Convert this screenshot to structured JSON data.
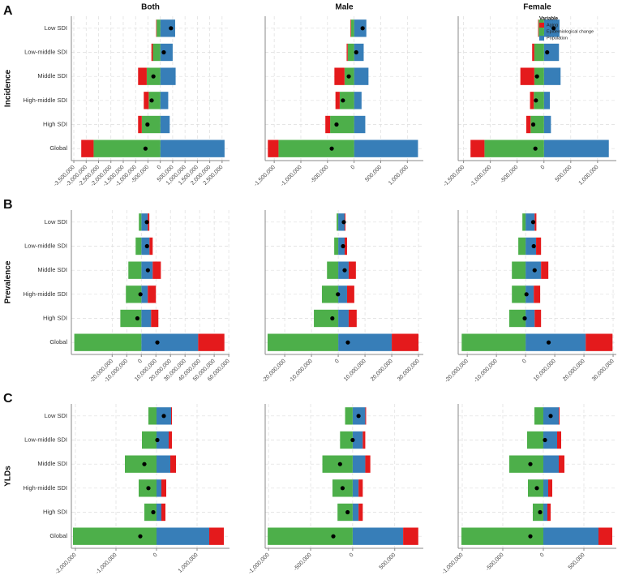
{
  "figure": {
    "columns": [
      "Both",
      "Male",
      "Female"
    ],
    "rows": [
      {
        "letter": "A",
        "measure": "Incidence"
      },
      {
        "letter": "B",
        "measure": "Prevalence"
      },
      {
        "letter": "C",
        "measure": "YLDs"
      }
    ],
    "legend_title": "Variable"
  },
  "chart_data": [
    {
      "type": "bar",
      "categories": [
        "Low SDI",
        "Low-middle SDI",
        "Middle SDI",
        "High-middle SDI",
        "High SDI",
        "Global"
      ],
      "series": [
        {
          "color": "#e41a1c",
          "values": [
            -20000,
            -60000,
            -350000,
            -200000,
            -150000,
            -500000
          ]
        },
        {
          "color": "#4daf4a",
          "values": [
            -150000,
            -300000,
            -550000,
            -470000,
            -750000,
            -2700000
          ]
        },
        {
          "color": "#377eb8",
          "values": [
            600000,
            500000,
            620000,
            320000,
            380000,
            2600000
          ]
        }
      ],
      "xlim": [
        -3600000,
        2800000
      ],
      "grid": true,
      "xticks": [
        {
          "value": -3500000,
          "label": "-3,500,000"
        },
        {
          "value": -3000000,
          "label": "-3,000,000"
        },
        {
          "value": -2500000,
          "label": "-2,500,000"
        },
        {
          "value": -2000000,
          "label": "-2,000,000"
        },
        {
          "value": -1500000,
          "label": "-1,500,000"
        },
        {
          "value": -1000000,
          "label": "-1,000,000"
        },
        {
          "value": -500000,
          "label": "-500,000"
        },
        0,
        {
          "value": 500000,
          "label": "500,000"
        },
        {
          "value": 1000000,
          "label": "1,000,000"
        },
        {
          "value": 1500000,
          "label": "1,500,000"
        },
        {
          "value": 2000000,
          "label": "2,000,000"
        },
        {
          "value": 2500000,
          "label": "2,500,000"
        }
      ]
    },
    {
      "type": "bar",
      "series": [
        {
          "color": "#e41a1c",
          "values": [
            -10000,
            -20000,
            -190000,
            -80000,
            -90000,
            -200000
          ]
        },
        {
          "color": "#4daf4a",
          "values": [
            -60000,
            -120000,
            -180000,
            -270000,
            -450000,
            -1420000
          ]
        },
        {
          "color": "#377eb8",
          "values": [
            230000,
            180000,
            270000,
            140000,
            210000,
            1200000
          ]
        }
      ],
      "xlim": [
        -1670000,
        1300000
      ],
      "grid": true,
      "xticks": [
        {
          "value": -1500000,
          "label": "-1,500,000"
        },
        {
          "value": -1000000,
          "label": "-1,000,000"
        },
        {
          "value": -500000,
          "label": "-500,000"
        },
        0,
        {
          "value": 500000,
          "label": "500,000"
        },
        {
          "value": 1000000,
          "label": "1,000,000"
        }
      ]
    },
    {
      "type": "bar",
      "series": [
        {
          "name": "Aging",
          "color": "#e41a1c",
          "values": [
            -10000,
            -40000,
            -260000,
            -70000,
            -80000,
            -260000
          ]
        },
        {
          "name": "Epidemiological change",
          "color": "#4daf4a",
          "values": [
            -100000,
            -180000,
            -180000,
            -190000,
            -250000,
            -1110000
          ]
        },
        {
          "name": "Population",
          "color": "#377eb8",
          "values": [
            290000,
            280000,
            310000,
            110000,
            130000,
            1210000
          ]
        }
      ],
      "xlim": [
        -1600000,
        1350000
      ],
      "grid": true,
      "xticks": [
        {
          "value": -1500000,
          "label": "-1,500,000"
        },
        {
          "value": -1000000,
          "label": "-1,000,000"
        },
        {
          "value": -500000,
          "label": "-500,000"
        },
        0,
        {
          "value": 500000,
          "label": "500,000"
        },
        {
          "value": 1000000,
          "label": "1,000,000"
        }
      ]
    },
    {
      "type": "bar",
      "categories": [
        "Low SDI",
        "Low-middle SDI",
        "Middle SDI",
        "High-middle SDI",
        "High SDI",
        "Global"
      ],
      "series": [
        {
          "color": "#e41a1c",
          "values": [
            1100000,
            2200000,
            5600000,
            5600000,
            5000000,
            18000000
          ]
        },
        {
          "color": "#4daf4a",
          "values": [
            -1700000,
            -3900000,
            -8900000,
            -10600000,
            -14400000,
            -46000000
          ]
        },
        {
          "color": "#377eb8",
          "values": [
            4400000,
            5600000,
            7800000,
            4400000,
            6700000,
            39000000
          ]
        }
      ],
      "xlim": [
        -48000000,
        60500000
      ],
      "grid": true,
      "xticks": [
        {
          "value": -20000000,
          "label": "-20,000,000"
        },
        {
          "value": -10000000,
          "label": "-10,000,000"
        },
        0,
        {
          "value": 10000000,
          "label": "10,000,000"
        },
        {
          "value": 20000000,
          "label": "20,000,000"
        },
        {
          "value": 30000000,
          "label": "30,000,000"
        },
        {
          "value": 40000000,
          "label": "40,000,000"
        },
        {
          "value": 50000000,
          "label": "50,000,000"
        },
        {
          "value": 60000000,
          "label": "60,000,000"
        }
      ]
    },
    {
      "type": "bar",
      "series": [
        {
          "color": "#e41a1c",
          "values": [
            300000,
            900000,
            2700000,
            2700000,
            3000000,
            10000000
          ]
        },
        {
          "color": "#4daf4a",
          "values": [
            -600000,
            -1500000,
            -4200000,
            -6100000,
            -9100000,
            -26400000
          ]
        },
        {
          "color": "#377eb8",
          "values": [
            2400000,
            2400000,
            3900000,
            3300000,
            3900000,
            20000000
          ]
        }
      ],
      "xlim": [
        -27300000,
        31800000
      ],
      "grid": true,
      "xticks": [
        {
          "value": -20000000,
          "label": "-20,000,000"
        },
        {
          "value": -10000000,
          "label": "-10,000,000"
        },
        0,
        {
          "value": 10000000,
          "label": "10,000,000"
        },
        {
          "value": 20000000,
          "label": "20,000,000"
        },
        {
          "value": 30000000,
          "label": "30,000,000"
        }
      ]
    },
    {
      "type": "bar",
      "series": [
        {
          "color": "#e41a1c",
          "values": [
            600000,
            1700000,
            2500000,
            2200000,
            2200000,
            9200000
          ]
        },
        {
          "color": "#4daf4a",
          "values": [
            -1100000,
            -2500000,
            -4700000,
            -4700000,
            -5600000,
            -21900000
          ]
        },
        {
          "color": "#377eb8",
          "values": [
            3100000,
            3600000,
            5300000,
            2800000,
            3100000,
            20600000
          ]
        }
      ],
      "xlim": [
        -23100000,
        31100000
      ],
      "grid": true,
      "xticks": [
        {
          "value": -20000000,
          "label": "-20,000,000"
        },
        {
          "value": -10000000,
          "label": "-10,000,000"
        },
        0,
        {
          "value": 10000000,
          "label": "10,000,000"
        },
        {
          "value": 20000000,
          "label": "20,000,000"
        },
        {
          "value": 30000000,
          "label": "30,000,000"
        }
      ]
    },
    {
      "type": "bar",
      "categories": [
        "Low SDI",
        "Low-middle SDI",
        "Middle SDI",
        "High-middle SDI",
        "High SDI",
        "Global"
      ],
      "series": [
        {
          "color": "#e41a1c",
          "values": [
            20000,
            80000,
            140000,
            120000,
            100000,
            360000
          ]
        },
        {
          "color": "#4daf4a",
          "values": [
            -200000,
            -360000,
            -780000,
            -440000,
            -300000,
            -2060000
          ]
        },
        {
          "color": "#377eb8",
          "values": [
            360000,
            300000,
            340000,
            120000,
            120000,
            1300000
          ]
        }
      ],
      "xlim": [
        -2100000,
        1800000
      ],
      "grid": true,
      "xticks": [
        {
          "value": -2000000,
          "label": "-2,000,000"
        },
        {
          "value": -1000000,
          "label": "-1,000,000"
        },
        0,
        {
          "value": 1000000,
          "label": "1,000,000"
        }
      ]
    },
    {
      "type": "bar",
      "series": [
        {
          "color": "#e41a1c",
          "values": [
            10000,
            30000,
            60000,
            50000,
            50000,
            180000
          ]
        },
        {
          "color": "#4daf4a",
          "values": [
            -90000,
            -150000,
            -360000,
            -240000,
            -180000,
            -1010000
          ]
        },
        {
          "color": "#377eb8",
          "values": [
            150000,
            120000,
            150000,
            70000,
            70000,
            600000
          ]
        }
      ],
      "xlim": [
        -1040000,
        840000
      ],
      "grid": true,
      "xticks": [
        {
          "value": -1000000,
          "label": "-1,000,000"
        },
        {
          "value": -500000,
          "label": "-500,000"
        },
        0,
        {
          "value": 500000,
          "label": "500,000"
        }
      ]
    },
    {
      "type": "bar",
      "series": [
        {
          "color": "#e41a1c",
          "values": [
            10000,
            50000,
            70000,
            50000,
            40000,
            170000
          ]
        },
        {
          "color": "#4daf4a",
          "values": [
            -110000,
            -200000,
            -420000,
            -190000,
            -130000,
            -1010000
          ]
        },
        {
          "color": "#377eb8",
          "values": [
            190000,
            170000,
            190000,
            60000,
            50000,
            680000
          ]
        }
      ],
      "xlim": [
        -1050000,
        900000
      ],
      "grid": true,
      "xticks": [
        {
          "value": -1000000,
          "label": "-1,000,000"
        },
        {
          "value": -500000,
          "label": "-500,000"
        },
        0,
        {
          "value": 500000,
          "label": "500,000"
        }
      ]
    }
  ]
}
